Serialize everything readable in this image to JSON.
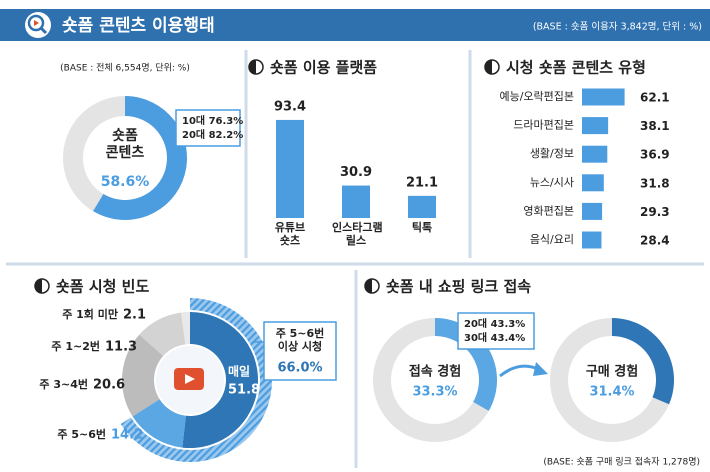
{
  "header": {
    "title": "숏폼 콘텐츠 이용행태",
    "base_note": "(BASE : 숏폼 이용자 3,842명, 단위 : %)"
  },
  "chart_data": [
    {
      "type": "donut",
      "base_note": "(BASE : 전체 6,554명, 단위: %)",
      "center_label": "숏폼 콘텐츠",
      "values": [
        58.6
      ],
      "value_labels": [
        "58.6%"
      ],
      "colors": [
        "#4b9de0"
      ],
      "annotations": [
        "10대 76.3%",
        "20대 82.2%"
      ]
    },
    {
      "type": "bar",
      "title": "숏폼 이용 플랫폼",
      "categories": [
        "유튜브 숏츠",
        "인스타그램 릴스",
        "틱톡"
      ],
      "values": [
        93.4,
        30.9,
        21.1
      ],
      "color": "#4b9de0",
      "ylim": [
        0,
        100
      ]
    },
    {
      "type": "hbar",
      "title": "시청 숏폼 콘텐츠 유형",
      "categories": [
        "예능/오락편집본",
        "드라마편집본",
        "생활/정보",
        "뉴스/시사",
        "영화편집본",
        "음식/요리"
      ],
      "values": [
        62.1,
        38.1,
        36.9,
        31.8,
        29.3,
        28.4
      ],
      "color": "#4b9de0",
      "xlim": [
        0,
        70
      ]
    },
    {
      "type": "donut",
      "title": "숏폼 시청 빈도",
      "categories": [
        "매일",
        "주 5~6번",
        "주 3~4번",
        "주 1~2번",
        "주 1회 미만"
      ],
      "values": [
        51.8,
        14.2,
        20.6,
        11.3,
        2.1
      ],
      "colors": [
        "#2e76b6",
        "#5aa7e3",
        "#bcbcbc",
        "#d3d3d3",
        "#e9e9e9"
      ],
      "highlight": {
        "label": "주 5~6번 이상 시청",
        "value": 66,
        "value_label": "66.0%"
      }
    },
    {
      "type": "donut_pair",
      "title": "숏폼 내 쇼핑 링크 접속",
      "items": [
        {
          "label": "접속 경험",
          "value": 33.3,
          "value_label": "33.3%",
          "color": "#5aa7e3"
        },
        {
          "label": "구매 경험",
          "value": 31.4,
          "value_label": "31.4%",
          "color": "#2e76b6"
        }
      ],
      "annotations": [
        "20대 43.3%",
        "30대 43.4%"
      ],
      "base_note": "(BASE: 숏폼 구매 링크 접속자 1,278명)"
    }
  ]
}
